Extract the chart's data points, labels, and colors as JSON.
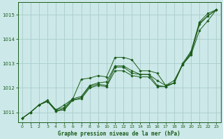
{
  "title": "Graphe pression niveau de la mer (hPa)",
  "background_color": "#cce8e8",
  "grid_color": "#aacccc",
  "line_color": "#1a5c1a",
  "xlim": [
    -0.5,
    23.5
  ],
  "ylim": [
    1010.6,
    1015.5
  ],
  "yticks": [
    1011,
    1012,
    1013,
    1014,
    1015
  ],
  "xticks": [
    0,
    1,
    2,
    3,
    4,
    5,
    6,
    7,
    8,
    9,
    10,
    11,
    12,
    13,
    14,
    15,
    16,
    17,
    18,
    19,
    20,
    21,
    22,
    23
  ],
  "series": [
    [
      1010.75,
      1011.0,
      1011.3,
      1011.45,
      1011.05,
      1011.15,
      1011.5,
      1011.6,
      1012.05,
      1012.15,
      1012.1,
      1012.85,
      1012.85,
      1012.6,
      1012.55,
      1012.55,
      1012.1,
      1012.05,
      1012.2,
      1012.95,
      1013.45,
      1014.65,
      1014.95,
      1015.2
    ],
    [
      1010.75,
      1011.0,
      1011.3,
      1011.45,
      1011.05,
      1011.1,
      1011.5,
      1011.55,
      1012.0,
      1012.1,
      1012.05,
      1012.7,
      1012.7,
      1012.5,
      1012.45,
      1012.45,
      1012.05,
      1012.05,
      1012.2,
      1012.95,
      1013.4,
      1014.6,
      1014.95,
      1015.2
    ],
    [
      1010.75,
      1011.0,
      1011.3,
      1011.5,
      1011.1,
      1011.3,
      1011.55,
      1012.35,
      1012.4,
      1012.5,
      1012.45,
      1013.25,
      1013.25,
      1013.15,
      1012.7,
      1012.7,
      1012.6,
      1012.1,
      1012.3,
      1012.95,
      1013.35,
      1014.35,
      1014.75,
      1015.2
    ],
    [
      1010.75,
      1011.0,
      1011.3,
      1011.45,
      1011.1,
      1011.2,
      1011.55,
      1011.65,
      1012.1,
      1012.2,
      1012.25,
      1012.9,
      1012.9,
      1012.7,
      1012.55,
      1012.55,
      1012.3,
      1012.1,
      1012.2,
      1013.0,
      1013.5,
      1014.7,
      1015.05,
      1015.2
    ]
  ]
}
